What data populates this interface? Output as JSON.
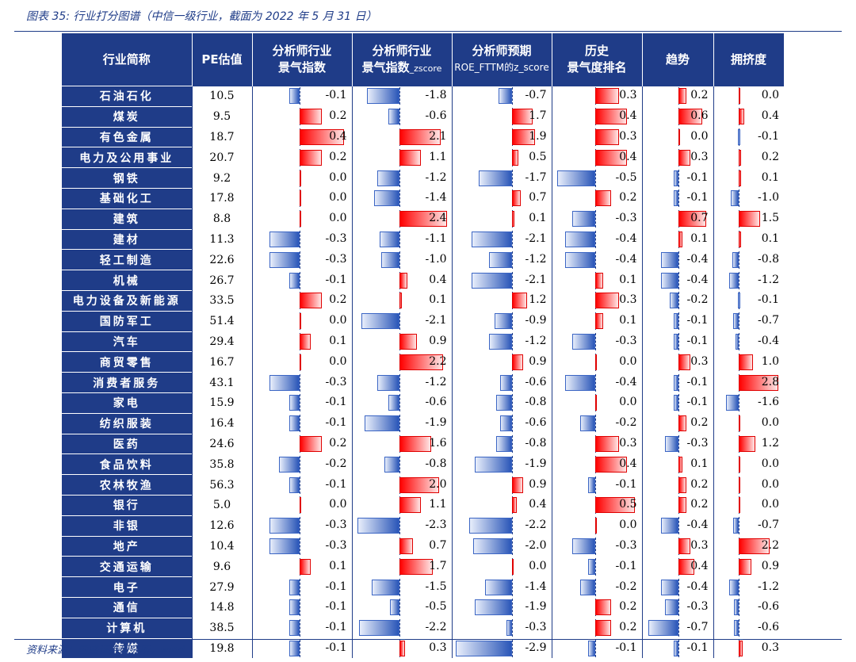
{
  "caption": "图表 35: 行业打分图谱（中信一级行业，截面为 2022 年 5 月 31 日）",
  "source": "资料来源：国盛证券研究所，wind",
  "colors": {
    "header_bg": "#1f3c88",
    "negative_bar": "#2a56b8",
    "positive_bar": "#ff0000"
  },
  "headers": {
    "industry": "行业简称",
    "pe": "PE估值",
    "analyst_l1": "分析师行业",
    "analyst_l2": "景气指数",
    "analystz_l1": "分析师行业",
    "analystz_l2": "景气指数",
    "analystz_sub": "_zscore",
    "roe_l1": "分析师预期",
    "roe_l2": "ROE_FTTM的z_score",
    "hist_l1": "历史",
    "hist_l2": "景气度排名",
    "trend": "趋势",
    "crowd": "拥挤度"
  },
  "rows": [
    {
      "name": "石油石化",
      "pe": "10.5",
      "analyst": -0.1,
      "analystz": -1.8,
      "roe": -0.7,
      "hist": 0.3,
      "trend": 0.2,
      "crowd": 0.0
    },
    {
      "name": "煤炭",
      "pe": "9.5",
      "analyst": 0.2,
      "analystz": -0.6,
      "roe": 1.7,
      "hist": 0.4,
      "trend": 0.6,
      "crowd": 0.4
    },
    {
      "name": "有色金属",
      "pe": "18.7",
      "analyst": 0.4,
      "analystz": 2.1,
      "roe": 1.9,
      "hist": 0.3,
      "trend": 0.0,
      "crowd": -0.1
    },
    {
      "name": "电力及公用事业",
      "pe": "20.7",
      "analyst": 0.2,
      "analystz": 1.1,
      "roe": 0.5,
      "hist": 0.4,
      "trend": 0.3,
      "crowd": 0.2
    },
    {
      "name": "钢铁",
      "pe": "9.2",
      "analyst": 0.0,
      "analystz": -1.2,
      "roe": -1.7,
      "hist": -0.5,
      "trend": -0.1,
      "crowd": 0.1
    },
    {
      "name": "基础化工",
      "pe": "17.8",
      "analyst": 0.0,
      "analystz": -1.4,
      "roe": 0.7,
      "hist": 0.2,
      "trend": -0.1,
      "crowd": -1.0
    },
    {
      "name": "建筑",
      "pe": "8.8",
      "analyst": 0.0,
      "analystz": 2.4,
      "roe": 0.1,
      "hist": -0.3,
      "trend": 0.7,
      "crowd": 1.5
    },
    {
      "name": "建材",
      "pe": "11.3",
      "analyst": -0.3,
      "analystz": -1.1,
      "roe": -2.1,
      "hist": -0.4,
      "trend": 0.1,
      "crowd": 0.1
    },
    {
      "name": "轻工制造",
      "pe": "22.6",
      "analyst": -0.3,
      "analystz": -1.0,
      "roe": -1.2,
      "hist": -0.4,
      "trend": -0.4,
      "crowd": -0.8
    },
    {
      "name": "机械",
      "pe": "26.7",
      "analyst": -0.1,
      "analystz": 0.4,
      "roe": -2.1,
      "hist": 0.1,
      "trend": -0.4,
      "crowd": -1.2
    },
    {
      "name": "电力设备及新能源",
      "pe": "33.5",
      "analyst": 0.2,
      "analystz": 0.1,
      "roe": 1.2,
      "hist": 0.3,
      "trend": -0.2,
      "crowd": -0.1
    },
    {
      "name": "国防军工",
      "pe": "51.4",
      "analyst": 0.0,
      "analystz": -2.1,
      "roe": -0.9,
      "hist": 0.1,
      "trend": -0.1,
      "crowd": -0.7
    },
    {
      "name": "汽车",
      "pe": "29.4",
      "analyst": 0.1,
      "analystz": 0.9,
      "roe": -1.2,
      "hist": -0.3,
      "trend": -0.1,
      "crowd": -0.4
    },
    {
      "name": "商贸零售",
      "pe": "16.7",
      "analyst": 0.0,
      "analystz": 2.2,
      "roe": 0.9,
      "hist": 0.0,
      "trend": 0.3,
      "crowd": 1.0
    },
    {
      "name": "消费者服务",
      "pe": "43.1",
      "analyst": -0.3,
      "analystz": -1.2,
      "roe": -0.6,
      "hist": -0.4,
      "trend": -0.1,
      "crowd": 2.8
    },
    {
      "name": "家电",
      "pe": "15.9",
      "analyst": -0.1,
      "analystz": -0.6,
      "roe": -0.8,
      "hist": 0.0,
      "trend": -0.1,
      "crowd": -1.6
    },
    {
      "name": "纺织服装",
      "pe": "16.4",
      "analyst": -0.1,
      "analystz": -1.9,
      "roe": -0.6,
      "hist": -0.2,
      "trend": 0.2,
      "crowd": 0.0
    },
    {
      "name": "医药",
      "pe": "24.6",
      "analyst": 0.2,
      "analystz": 1.6,
      "roe": -0.8,
      "hist": 0.3,
      "trend": -0.3,
      "crowd": 1.2
    },
    {
      "name": "食品饮料",
      "pe": "35.8",
      "analyst": -0.2,
      "analystz": -0.8,
      "roe": -1.9,
      "hist": 0.4,
      "trend": 0.1,
      "crowd": 0.0
    },
    {
      "name": "农林牧渔",
      "pe": "56.3",
      "analyst": -0.1,
      "analystz": 2.0,
      "roe": 0.9,
      "hist": -0.1,
      "trend": 0.2,
      "crowd": 0.0
    },
    {
      "name": "银行",
      "pe": "5.0",
      "analyst": 0.0,
      "analystz": 1.1,
      "roe": 0.4,
      "hist": 0.5,
      "trend": 0.2,
      "crowd": 0.0
    },
    {
      "name": "非银",
      "pe": "12.6",
      "analyst": -0.3,
      "analystz": -2.3,
      "roe": -2.2,
      "hist": 0.0,
      "trend": -0.4,
      "crowd": -0.7
    },
    {
      "name": "地产",
      "pe": "10.4",
      "analyst": -0.3,
      "analystz": 0.7,
      "roe": -2.0,
      "hist": -0.3,
      "trend": 0.3,
      "crowd": 2.2
    },
    {
      "name": "交通运输",
      "pe": "9.6",
      "analyst": 0.1,
      "analystz": 1.7,
      "roe": 0.0,
      "hist": -0.1,
      "trend": 0.4,
      "crowd": 0.9
    },
    {
      "name": "电子",
      "pe": "27.9",
      "analyst": -0.1,
      "analystz": -1.5,
      "roe": -1.4,
      "hist": -0.2,
      "trend": -0.4,
      "crowd": -1.2
    },
    {
      "name": "通信",
      "pe": "14.8",
      "analyst": -0.1,
      "analystz": -0.5,
      "roe": -1.9,
      "hist": 0.2,
      "trend": -0.3,
      "crowd": -0.6
    },
    {
      "name": "计算机",
      "pe": "38.5",
      "analyst": -0.1,
      "analystz": -2.2,
      "roe": -0.3,
      "hist": 0.2,
      "trend": -0.7,
      "crowd": -0.6
    },
    {
      "name": "传媒",
      "pe": "19.8",
      "analyst": -0.1,
      "analystz": 0.3,
      "roe": -2.9,
      "hist": -0.1,
      "trend": -0.1,
      "crowd": 0.3
    }
  ]
}
